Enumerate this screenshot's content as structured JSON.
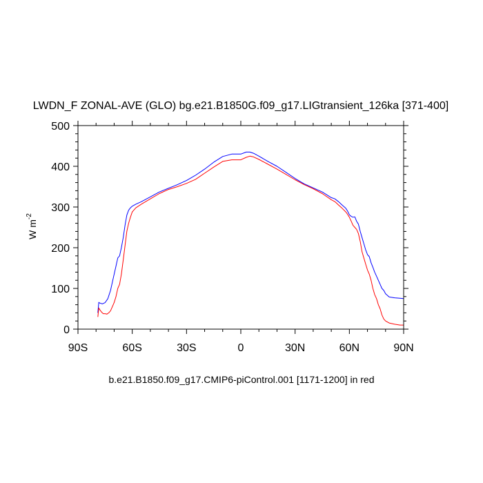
{
  "chart_data": {
    "type": "line",
    "title": "LWDN_F ZONAL-AVE (GLO) bg.e21.B1850G.f09_g17.LIGtransient_126ka [371-400]",
    "caption": "b.e21.B1850.f09_g17.CMIP6-piControl.001 [1171-1200] in red",
    "ylabel": "W m",
    "ylabel_superscript": "-2",
    "xlim": [
      -90,
      90
    ],
    "ylim": [
      0,
      500
    ],
    "grid": false,
    "x_ticks": [
      {
        "value": -90,
        "label": "90S"
      },
      {
        "value": -60,
        "label": "60S"
      },
      {
        "value": -30,
        "label": "30S"
      },
      {
        "value": 0,
        "label": "0"
      },
      {
        "value": 30,
        "label": "30N"
      },
      {
        "value": 60,
        "label": "60N"
      },
      {
        "value": 90,
        "label": "90N"
      }
    ],
    "y_ticks": [
      {
        "value": 0,
        "label": "0"
      },
      {
        "value": 100,
        "label": "100"
      },
      {
        "value": 200,
        "label": "200"
      },
      {
        "value": 300,
        "label": "300"
      },
      {
        "value": 400,
        "label": "400"
      },
      {
        "value": 500,
        "label": "500"
      }
    ],
    "series": [
      {
        "color": "#0000ff",
        "x": [
          -79,
          -78.5,
          -78,
          -76.5,
          -75,
          -73.5,
          -72,
          -70.5,
          -69,
          -68,
          -67,
          -66,
          -65,
          -64,
          -63,
          -62,
          -61,
          -60,
          -58,
          -55,
          -50,
          -45,
          -40,
          -35,
          -30,
          -25,
          -20,
          -15,
          -10,
          -5,
          0,
          3,
          5,
          7,
          10,
          15,
          20,
          25,
          30,
          35,
          40,
          45,
          50,
          52,
          54,
          56,
          58,
          59,
          60,
          61,
          62,
          63,
          64,
          65,
          66,
          67,
          68,
          69,
          70,
          71,
          72,
          73,
          74,
          75,
          76,
          77,
          78,
          79,
          80,
          82,
          85,
          88,
          90
        ],
        "y": [
          40,
          66,
          64,
          62,
          65,
          75,
          95,
          125,
          155,
          175,
          180,
          200,
          225,
          255,
          280,
          292,
          298,
          302,
          307,
          313,
          325,
          337,
          346,
          355,
          365,
          378,
          393,
          410,
          424,
          430,
          430,
          435,
          435,
          432,
          425,
          412,
          400,
          385,
          370,
          357,
          347,
          337,
          323,
          320,
          313,
          305,
          297,
          290,
          281,
          277,
          275,
          276,
          265,
          258,
          240,
          225,
          210,
          195,
          183,
          178,
          163,
          152,
          140,
          130,
          120,
          110,
          100,
          95,
          87,
          79,
          77,
          76,
          75
        ]
      },
      {
        "color": "#ff0000",
        "x": [
          -79,
          -78.5,
          -78,
          -77,
          -76,
          -75,
          -74,
          -73,
          -72,
          -71,
          -70,
          -69,
          -68,
          -67,
          -66,
          -65,
          -64,
          -63,
          -62,
          -61,
          -60,
          -58,
          -55,
          -50,
          -45,
          -40,
          -35,
          -30,
          -25,
          -20,
          -15,
          -10,
          -5,
          0,
          3,
          5,
          7,
          10,
          15,
          20,
          25,
          30,
          35,
          40,
          45,
          50,
          52,
          54,
          56,
          58,
          59,
          60,
          61,
          62,
          63,
          64,
          65,
          66,
          67,
          68,
          69,
          70,
          71,
          72,
          73,
          74,
          75,
          76,
          77,
          78,
          79,
          80,
          82,
          85,
          88,
          90
        ],
        "y": [
          30,
          52,
          48,
          42,
          38,
          38,
          37,
          40,
          45,
          55,
          65,
          80,
          100,
          110,
          135,
          170,
          205,
          240,
          260,
          275,
          288,
          298,
          307,
          320,
          333,
          343,
          350,
          358,
          368,
          383,
          398,
          412,
          416,
          416,
          422,
          425,
          423,
          417,
          405,
          393,
          380,
          367,
          355,
          345,
          333,
          318,
          313,
          305,
          297,
          288,
          282,
          275,
          265,
          255,
          250,
          245,
          235,
          215,
          190,
          175,
          160,
          145,
          135,
          120,
          100,
          85,
          75,
          60,
          50,
          35,
          25,
          20,
          15,
          12,
          10,
          10
        ]
      }
    ]
  }
}
